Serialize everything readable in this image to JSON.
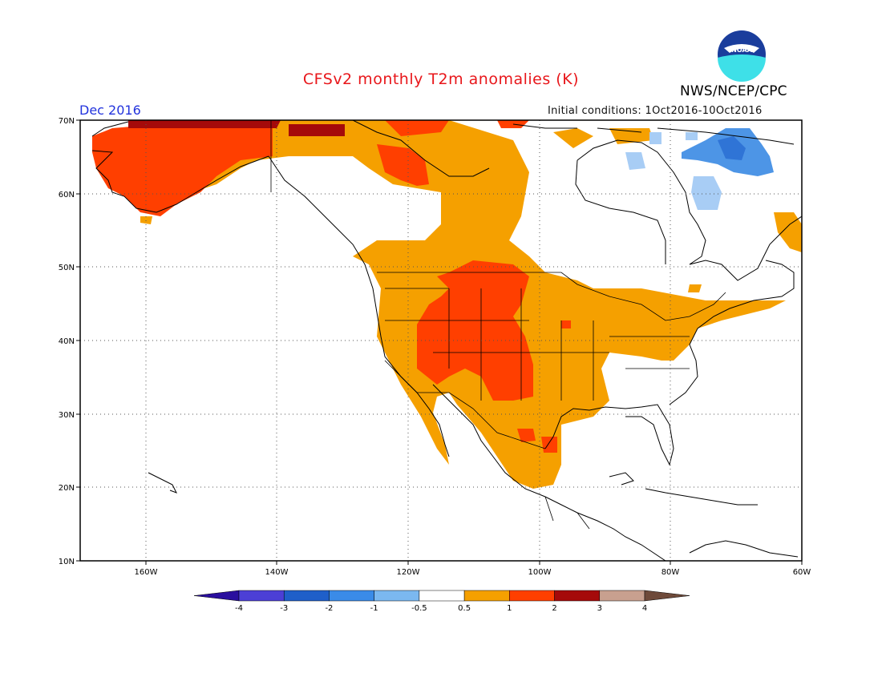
{
  "header": {
    "title": "CFSv2 monthly T2m anomalies (K)",
    "period": "Dec 2016",
    "initial_conditions": "Initial conditions: 1Oct2016-10Oct2016",
    "agency": "NWS/NCEP/CPC",
    "logo_text": "NOAA"
  },
  "axes": {
    "lat_labels": [
      "70N",
      "60N",
      "50N",
      "40N",
      "30N",
      "20N",
      "10N"
    ],
    "lon_labels": [
      "160W",
      "140W",
      "120W",
      "100W",
      "80W",
      "60W"
    ],
    "lon_range": [
      -170,
      -60
    ],
    "lat_range": [
      10,
      70
    ],
    "gridlines": "dotted"
  },
  "colorbar": {
    "tick_labels": [
      "-4",
      "-3",
      "-2",
      "-1",
      "-0.5",
      "0.5",
      "1",
      "2",
      "3",
      "4"
    ],
    "colors": [
      "#2a0f9e",
      "#4c3fd6",
      "#1f5fc9",
      "#3a8be8",
      "#7bb8f0",
      "#ffffff",
      "#f5a000",
      "#ff3f00",
      "#a50a0a",
      "#c8a08f",
      "#6e4a3a"
    ]
  },
  "anomaly_colors": {
    "cold_0.5_1": "#a8cdf5",
    "cold_1_2": "#4d95e6",
    "cold_2_3": "#2f74d6",
    "warm_0.5_1": "#f5a000",
    "warm_1_2": "#ff3f00",
    "warm_2_3": "#a50a0a"
  }
}
